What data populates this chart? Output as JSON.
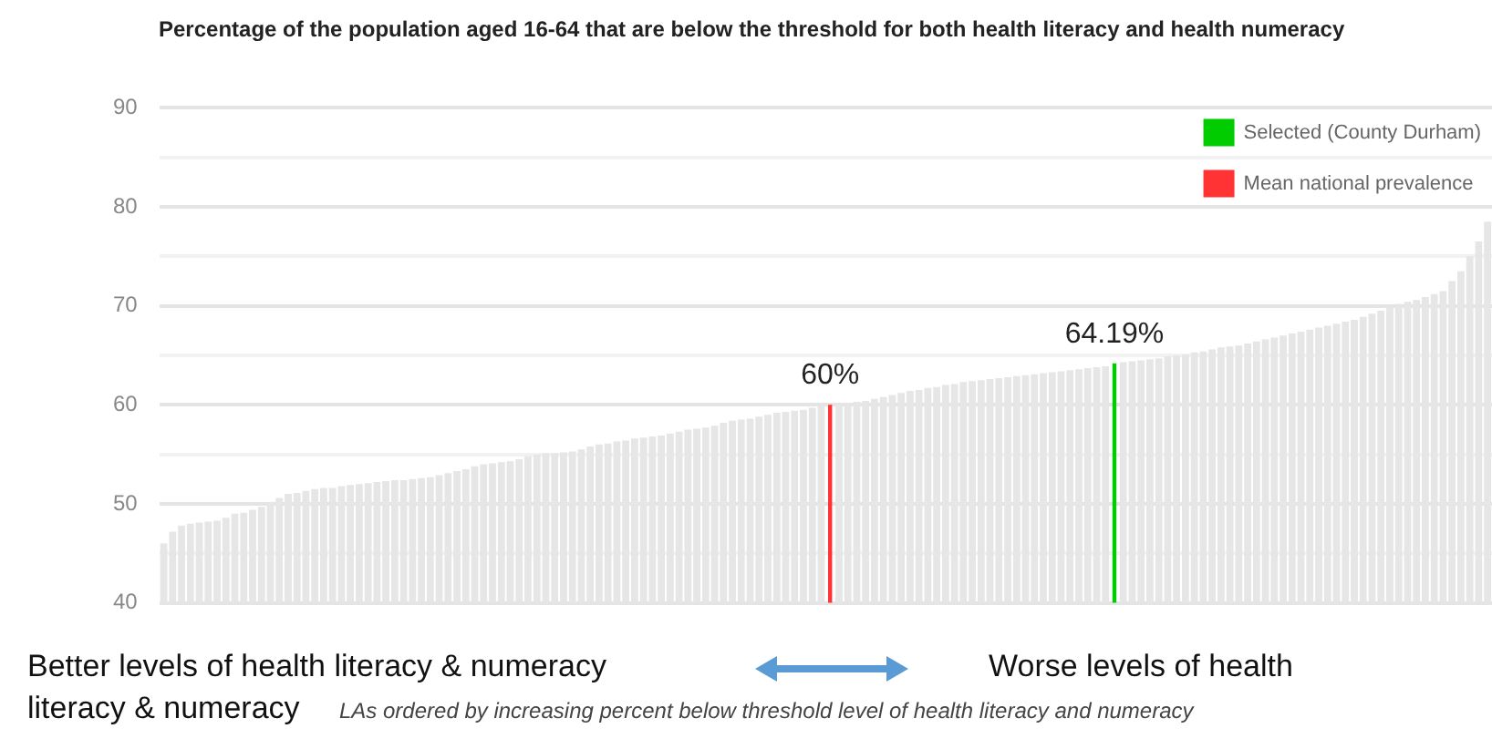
{
  "chart_data": {
    "type": "bar",
    "title": "Percentage of the population aged 16-64 that are below the threshold for both health literacy and health numeracy",
    "categories": [
      null,
      null,
      null,
      null,
      null,
      null,
      null,
      null,
      null,
      null,
      null,
      null,
      null,
      null,
      null,
      null,
      null,
      null,
      null,
      null,
      null,
      null,
      null,
      null,
      null,
      null,
      null,
      null,
      null,
      null,
      null,
      null,
      null,
      null,
      null,
      null,
      null,
      null,
      null,
      null,
      null,
      null,
      null,
      null,
      null,
      null,
      null,
      null,
      null,
      null,
      null,
      null,
      null,
      null,
      null,
      null,
      null,
      null,
      null,
      null,
      null,
      null,
      null,
      null,
      null,
      null,
      null,
      null,
      null,
      null,
      null,
      null,
      null,
      null,
      null,
      null,
      null,
      null,
      null,
      null,
      null,
      null,
      null,
      null,
      null,
      null,
      null,
      null,
      null,
      null,
      null,
      null,
      null,
      null,
      null,
      null,
      null,
      null,
      null,
      null,
      null,
      null,
      null,
      null,
      null,
      null,
      null,
      null,
      null,
      null,
      null,
      null,
      null,
      null,
      null,
      null,
      null,
      null,
      null,
      null,
      null,
      null,
      null,
      null,
      null,
      null,
      null,
      null,
      null,
      null,
      null,
      null,
      null,
      null,
      null,
      null,
      null,
      null,
      null,
      null,
      null,
      null,
      null,
      null,
      null,
      null,
      null,
      null,
      null,
      null
    ],
    "series": [
      {
        "color": "#e6e6e6",
        "values": [
          46.0,
          47.2,
          47.8,
          48.0,
          48.1,
          48.2,
          48.3,
          48.6,
          49.0,
          49.1,
          49.4,
          49.7,
          50.2,
          50.6,
          51.0,
          51.1,
          51.3,
          51.5,
          51.6,
          51.6,
          51.8,
          51.9,
          52.0,
          52.1,
          52.2,
          52.3,
          52.4,
          52.4,
          52.5,
          52.6,
          52.7,
          52.9,
          53.1,
          53.3,
          53.5,
          53.8,
          54.0,
          54.1,
          54.2,
          54.3,
          54.5,
          54.8,
          55.0,
          55.1,
          55.1,
          55.2,
          55.3,
          55.5,
          55.8,
          56.0,
          56.1,
          56.3,
          56.4,
          56.6,
          56.7,
          56.8,
          56.9,
          57.1,
          57.3,
          57.5,
          57.6,
          57.7,
          57.9,
          58.2,
          58.4,
          58.5,
          58.6,
          58.8,
          59.0,
          59.2,
          59.3,
          59.4,
          59.5,
          59.7,
          59.9,
          null,
          60.1,
          60.2,
          60.3,
          60.4,
          60.6,
          60.8,
          61.0,
          61.2,
          61.4,
          61.5,
          61.7,
          61.8,
          62.0,
          62.1,
          62.3,
          62.4,
          62.5,
          62.6,
          62.7,
          62.8,
          62.9,
          63.0,
          63.1,
          63.2,
          63.3,
          63.4,
          63.5,
          63.6,
          63.7,
          63.8,
          63.9,
          null,
          64.3,
          64.4,
          64.5,
          64.6,
          64.7,
          64.9,
          65.0,
          65.1,
          65.3,
          65.4,
          65.6,
          65.8,
          65.9,
          66.0,
          66.2,
          66.4,
          66.6,
          66.8,
          67.0,
          67.2,
          67.4,
          67.6,
          67.8,
          68.0,
          68.2,
          68.4,
          68.6,
          68.9,
          69.2,
          69.5,
          69.8,
          70.2,
          70.4,
          70.6,
          70.9,
          71.2,
          71.5,
          72.5,
          73.5,
          75.0,
          76.5,
          78.5
        ]
      },
      {
        "name": "Selected (County Durham)",
        "color": "#00cc00",
        "values": [
          null,
          null,
          null,
          null,
          null,
          null,
          null,
          null,
          null,
          null,
          null,
          null,
          null,
          null,
          null,
          null,
          null,
          null,
          null,
          null,
          null,
          null,
          null,
          null,
          null,
          null,
          null,
          null,
          null,
          null,
          null,
          null,
          null,
          null,
          null,
          null,
          null,
          null,
          null,
          null,
          null,
          null,
          null,
          null,
          null,
          null,
          null,
          null,
          null,
          null,
          null,
          null,
          null,
          null,
          null,
          null,
          null,
          null,
          null,
          null,
          null,
          null,
          null,
          null,
          null,
          null,
          null,
          null,
          null,
          null,
          null,
          null,
          null,
          null,
          null,
          null,
          null,
          null,
          null,
          null,
          null,
          null,
          null,
          null,
          null,
          null,
          null,
          null,
          null,
          null,
          null,
          null,
          null,
          null,
          null,
          null,
          null,
          null,
          null,
          null,
          null,
          null,
          null,
          null,
          null,
          null,
          null,
          64.19,
          null,
          null,
          null,
          null,
          null,
          null,
          null,
          null,
          null,
          null,
          null,
          null,
          null,
          null,
          null,
          null,
          null,
          null,
          null,
          null,
          null,
          null,
          null,
          null,
          null,
          null,
          null,
          null,
          null,
          null,
          null,
          null,
          null,
          null,
          null,
          null,
          null,
          null,
          null,
          null,
          null,
          null
        ],
        "value_labels": [
          null,
          null,
          null,
          null,
          null,
          null,
          null,
          null,
          null,
          null,
          null,
          null,
          null,
          null,
          null,
          null,
          null,
          null,
          null,
          null,
          null,
          null,
          null,
          null,
          null,
          null,
          null,
          null,
          null,
          null,
          null,
          null,
          null,
          null,
          null,
          null,
          null,
          null,
          null,
          null,
          null,
          null,
          null,
          null,
          null,
          null,
          null,
          null,
          null,
          null,
          null,
          null,
          null,
          null,
          null,
          null,
          null,
          null,
          null,
          null,
          null,
          null,
          null,
          null,
          null,
          null,
          null,
          null,
          null,
          null,
          null,
          null,
          null,
          null,
          null,
          null,
          null,
          null,
          null,
          null,
          null,
          null,
          null,
          null,
          null,
          null,
          null,
          null,
          null,
          null,
          null,
          null,
          null,
          null,
          null,
          null,
          null,
          null,
          null,
          null,
          null,
          null,
          null,
          null,
          null,
          null,
          null,
          "64.19%",
          null,
          null,
          null,
          null,
          null,
          null,
          null,
          null,
          null,
          null,
          null,
          null,
          null,
          null,
          null,
          null,
          null,
          null,
          null,
          null,
          null,
          null,
          null,
          null,
          null,
          null,
          null,
          null,
          null,
          null,
          null,
          null,
          null,
          null,
          null,
          null,
          null,
          null,
          null,
          null,
          null,
          null
        ]
      },
      {
        "name": "Mean national prevalence",
        "color": "#ff3333",
        "values": [
          null,
          null,
          null,
          null,
          null,
          null,
          null,
          null,
          null,
          null,
          null,
          null,
          null,
          null,
          null,
          null,
          null,
          null,
          null,
          null,
          null,
          null,
          null,
          null,
          null,
          null,
          null,
          null,
          null,
          null,
          null,
          null,
          null,
          null,
          null,
          null,
          null,
          null,
          null,
          null,
          null,
          null,
          null,
          null,
          null,
          null,
          null,
          null,
          null,
          null,
          null,
          null,
          null,
          null,
          null,
          null,
          null,
          null,
          null,
          null,
          null,
          null,
          null,
          null,
          null,
          null,
          null,
          null,
          null,
          null,
          null,
          null,
          null,
          null,
          null,
          60,
          null,
          null,
          null,
          null,
          null,
          null,
          null,
          null,
          null,
          null,
          null,
          null,
          null,
          null,
          null,
          null,
          null,
          null,
          null,
          null,
          null,
          null,
          null,
          null,
          null,
          null,
          null,
          null,
          null,
          null,
          null,
          null,
          null,
          null,
          null,
          null,
          null,
          null,
          null,
          null,
          null,
          null,
          null,
          null,
          null,
          null,
          null,
          null,
          null,
          null,
          null,
          null,
          null,
          null,
          null,
          null,
          null,
          null,
          null,
          null,
          null,
          null,
          null,
          null,
          null,
          null,
          null,
          null,
          null,
          null,
          null,
          null,
          null,
          null
        ],
        "value_labels": [
          null,
          null,
          null,
          null,
          null,
          null,
          null,
          null,
          null,
          null,
          null,
          null,
          null,
          null,
          null,
          null,
          null,
          null,
          null,
          null,
          null,
          null,
          null,
          null,
          null,
          null,
          null,
          null,
          null,
          null,
          null,
          null,
          null,
          null,
          null,
          null,
          null,
          null,
          null,
          null,
          null,
          null,
          null,
          null,
          null,
          null,
          null,
          null,
          null,
          null,
          null,
          null,
          null,
          null,
          null,
          null,
          null,
          null,
          null,
          null,
          null,
          null,
          null,
          null,
          null,
          null,
          null,
          null,
          null,
          null,
          null,
          null,
          null,
          null,
          null,
          "60%",
          null,
          null,
          null,
          null,
          null,
          null,
          null,
          null,
          null,
          null,
          null,
          null,
          null,
          null,
          null,
          null,
          null,
          null,
          null,
          null,
          null,
          null,
          null,
          null,
          null,
          null,
          null,
          null,
          null,
          null,
          null,
          null,
          null,
          null,
          null,
          null,
          null,
          null,
          null,
          null,
          null,
          null,
          null,
          null,
          null,
          null,
          null,
          null,
          null,
          null,
          null,
          null,
          null,
          null,
          null,
          null,
          null,
          null,
          null,
          null,
          null,
          null,
          null,
          null,
          null,
          null,
          null,
          null,
          null,
          null,
          null,
          null,
          null,
          null
        ]
      }
    ],
    "stacked": true,
    "ylim": [
      40,
      90
    ],
    "yticks": [
      40,
      {
        "value": 45,
        "label": null
      },
      50,
      {
        "value": 55,
        "label": null
      },
      60,
      {
        "value": 65,
        "label": null
      },
      70,
      {
        "value": 75,
        "label": null
      },
      80,
      {
        "value": 85,
        "label": null
      },
      90
    ],
    "grid": "y",
    "legend": "top right",
    "tick_labels": "y",
    "annotations": [
      "Better levels of health literacy & numeracy",
      "Worse levels of health",
      "literacy & numeracy",
      "LAs ordered by increasing percent below threshold level of health literacy and numeracy"
    ]
  }
}
